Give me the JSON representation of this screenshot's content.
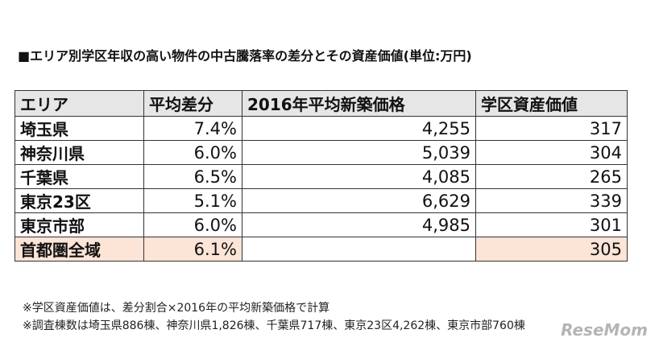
{
  "title": "■エリア別学区年収の高い物件の中古騰落率の差分とその資産価値(単位:万円)",
  "table": {
    "headers": [
      "エリア",
      "平均差分",
      "2016年平均新築価格",
      "学区資産価値"
    ],
    "rows": [
      {
        "area": "埼玉県",
        "avg_diff": "7.4%",
        "price": "4,255",
        "value": "317"
      },
      {
        "area": "神奈川県",
        "avg_diff": "6.0%",
        "price": "5,039",
        "value": "304"
      },
      {
        "area": "千葉県",
        "avg_diff": "6.5%",
        "price": "4,085",
        "value": "265"
      },
      {
        "area": "東京23区",
        "avg_diff": "5.1%",
        "price": "6,629",
        "value": "339"
      },
      {
        "area": "東京市部",
        "avg_diff": "6.0%",
        "price": "4,985",
        "value": "301"
      },
      {
        "area": "首都圏全域",
        "avg_diff": "6.1%",
        "value": "305"
      }
    ]
  },
  "notes": [
    "※学区資産価値は、差分割合×2016年の平均新築価格で計算",
    "※調査棟数は埼玉県886棟、神奈川県1,826棟、千葉県717棟、東京23区4,262棟、東京市部760棟"
  ],
  "watermark": "ReseMom"
}
